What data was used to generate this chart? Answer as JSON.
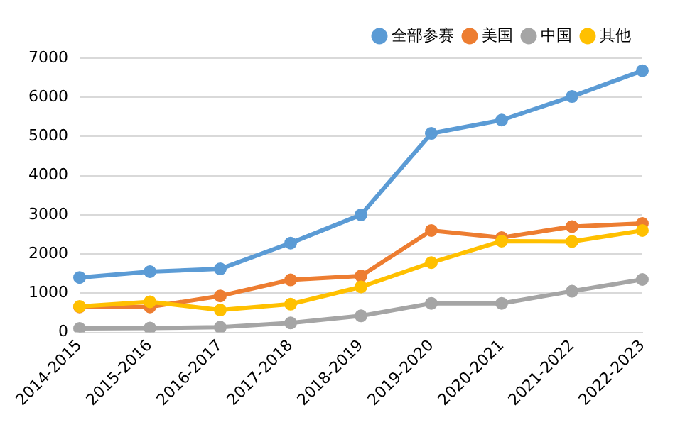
{
  "chart_data": {
    "type": "line",
    "categories": [
      "2014-2015",
      "2015-2016",
      "2016-2017",
      "2017-2018",
      "2018-2019",
      "2019-2020",
      "2020-2021",
      "2021-2022",
      "2022-2023"
    ],
    "series": [
      {
        "name": "全部参赛",
        "color": "#5b9bd5",
        "values": [
          1400,
          1550,
          1620,
          2280,
          3000,
          5080,
          5420,
          6020,
          6680
        ]
      },
      {
        "name": "美国",
        "color": "#ed7d31",
        "values": [
          650,
          650,
          930,
          1340,
          1440,
          2600,
          2420,
          2700,
          2780
        ]
      },
      {
        "name": "中国",
        "color": "#a5a5a5",
        "values": [
          100,
          110,
          130,
          240,
          420,
          740,
          740,
          1050,
          1350
        ]
      },
      {
        "name": "其他",
        "color": "#ffc000",
        "values": [
          660,
          780,
          570,
          720,
          1160,
          1780,
          2330,
          2320,
          2600
        ]
      }
    ],
    "ylim": [
      0,
      7000
    ],
    "yticks": [
      0,
      1000,
      2000,
      3000,
      4000,
      5000,
      6000,
      7000
    ],
    "grid": "y",
    "legend": "top right",
    "marker": "circle",
    "line_style": "solid"
  }
}
